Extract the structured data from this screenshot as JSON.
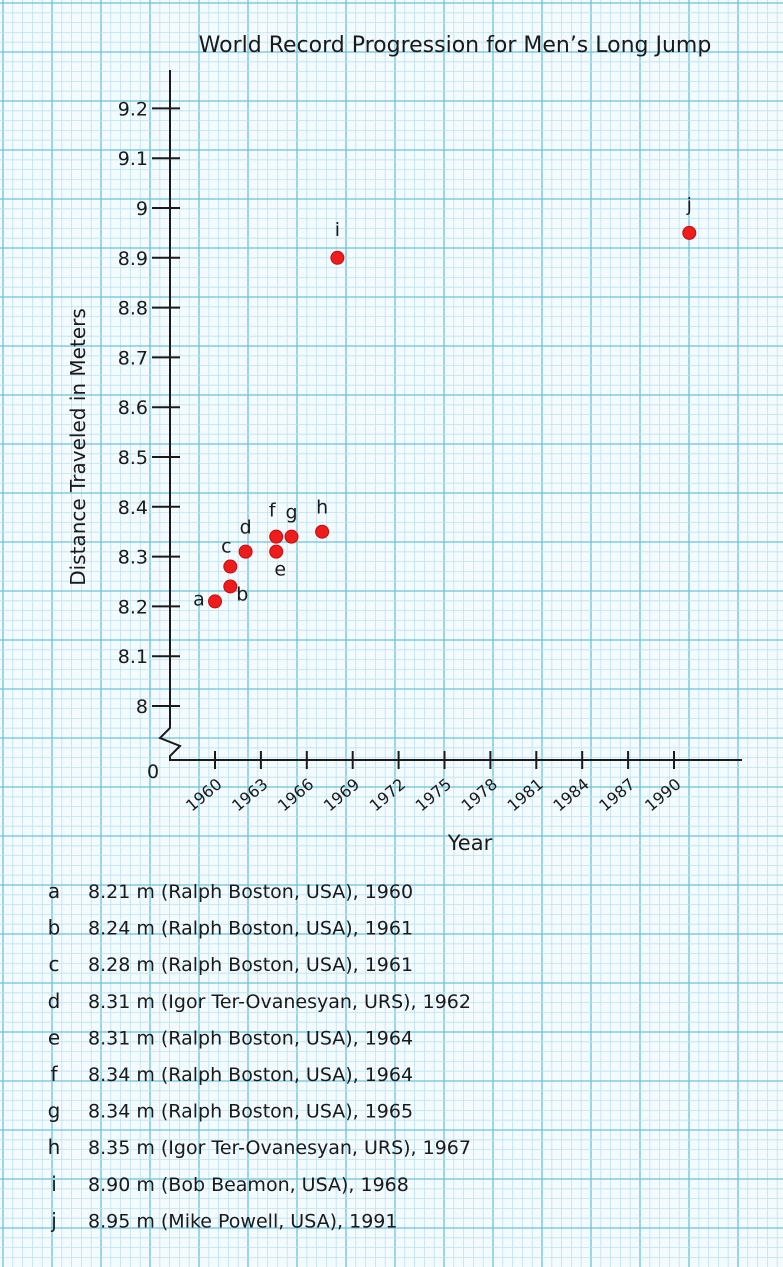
{
  "chart_data": {
    "type": "scatter",
    "title": "World Record Progression for Men’s Long Jump",
    "xlabel": "Year",
    "ylabel": "Distance Traveled in Meters",
    "x_ticks": [
      "1960",
      "1963",
      "1966",
      "1969",
      "1972",
      "1975",
      "1978",
      "1981",
      "1984",
      "1987",
      "1990"
    ],
    "y_ticks": [
      "9.2",
      "9.1",
      "9",
      "8.9",
      "8.8",
      "8.7",
      "8.6",
      "8.5",
      "8.4",
      "8.3",
      "8.2",
      "8.1",
      "8"
    ],
    "origin_label": "0",
    "xlim": [
      1959,
      1992
    ],
    "ylim": [
      8,
      9.2
    ],
    "axis_break": true,
    "grid": true,
    "points": [
      {
        "label": "a",
        "year": 1960,
        "distance": 8.21
      },
      {
        "label": "b",
        "year": 1961,
        "distance": 8.24
      },
      {
        "label": "c",
        "year": 1961,
        "distance": 8.28
      },
      {
        "label": "d",
        "year": 1962,
        "distance": 8.31
      },
      {
        "label": "e",
        "year": 1964,
        "distance": 8.31
      },
      {
        "label": "f",
        "year": 1964,
        "distance": 8.34
      },
      {
        "label": "g",
        "year": 1965,
        "distance": 8.34
      },
      {
        "label": "h",
        "year": 1967,
        "distance": 8.35
      },
      {
        "label": "i",
        "year": 1968,
        "distance": 8.9
      },
      {
        "label": "j",
        "year": 1991,
        "distance": 8.95
      }
    ],
    "point_color": "#ee1c1c"
  },
  "legend": [
    {
      "letter": "a",
      "text": "8.21 m (Ralph Boston, USA), 1960"
    },
    {
      "letter": "b",
      "text": "8.24 m (Ralph Boston, USA), 1961"
    },
    {
      "letter": "c",
      "text": "8.28 m (Ralph Boston, USA), 1961"
    },
    {
      "letter": "d",
      "text": "8.31 m (Igor Ter-Ovanesyan, URS), 1962"
    },
    {
      "letter": "e",
      "text": "8.31 m (Ralph Boston, USA), 1964"
    },
    {
      "letter": "f",
      "text": "8.34 m (Ralph Boston, USA), 1964"
    },
    {
      "letter": "g",
      "text": "8.34 m (Ralph Boston, USA), 1965"
    },
    {
      "letter": "h",
      "text": "8.35 m (Igor Ter-Ovanesyan, URS), 1967"
    },
    {
      "letter": "i",
      "text": "8.90 m (Bob Beamon, USA), 1968"
    },
    {
      "letter": "j",
      "text": "8.95 m (Mike Powell, USA), 1991"
    }
  ],
  "colors": {
    "grid_minor": "#bfe2ef",
    "grid_major": "#6cc2dc",
    "paper": "#f3fbfe",
    "ink": "#1a1a1a"
  }
}
